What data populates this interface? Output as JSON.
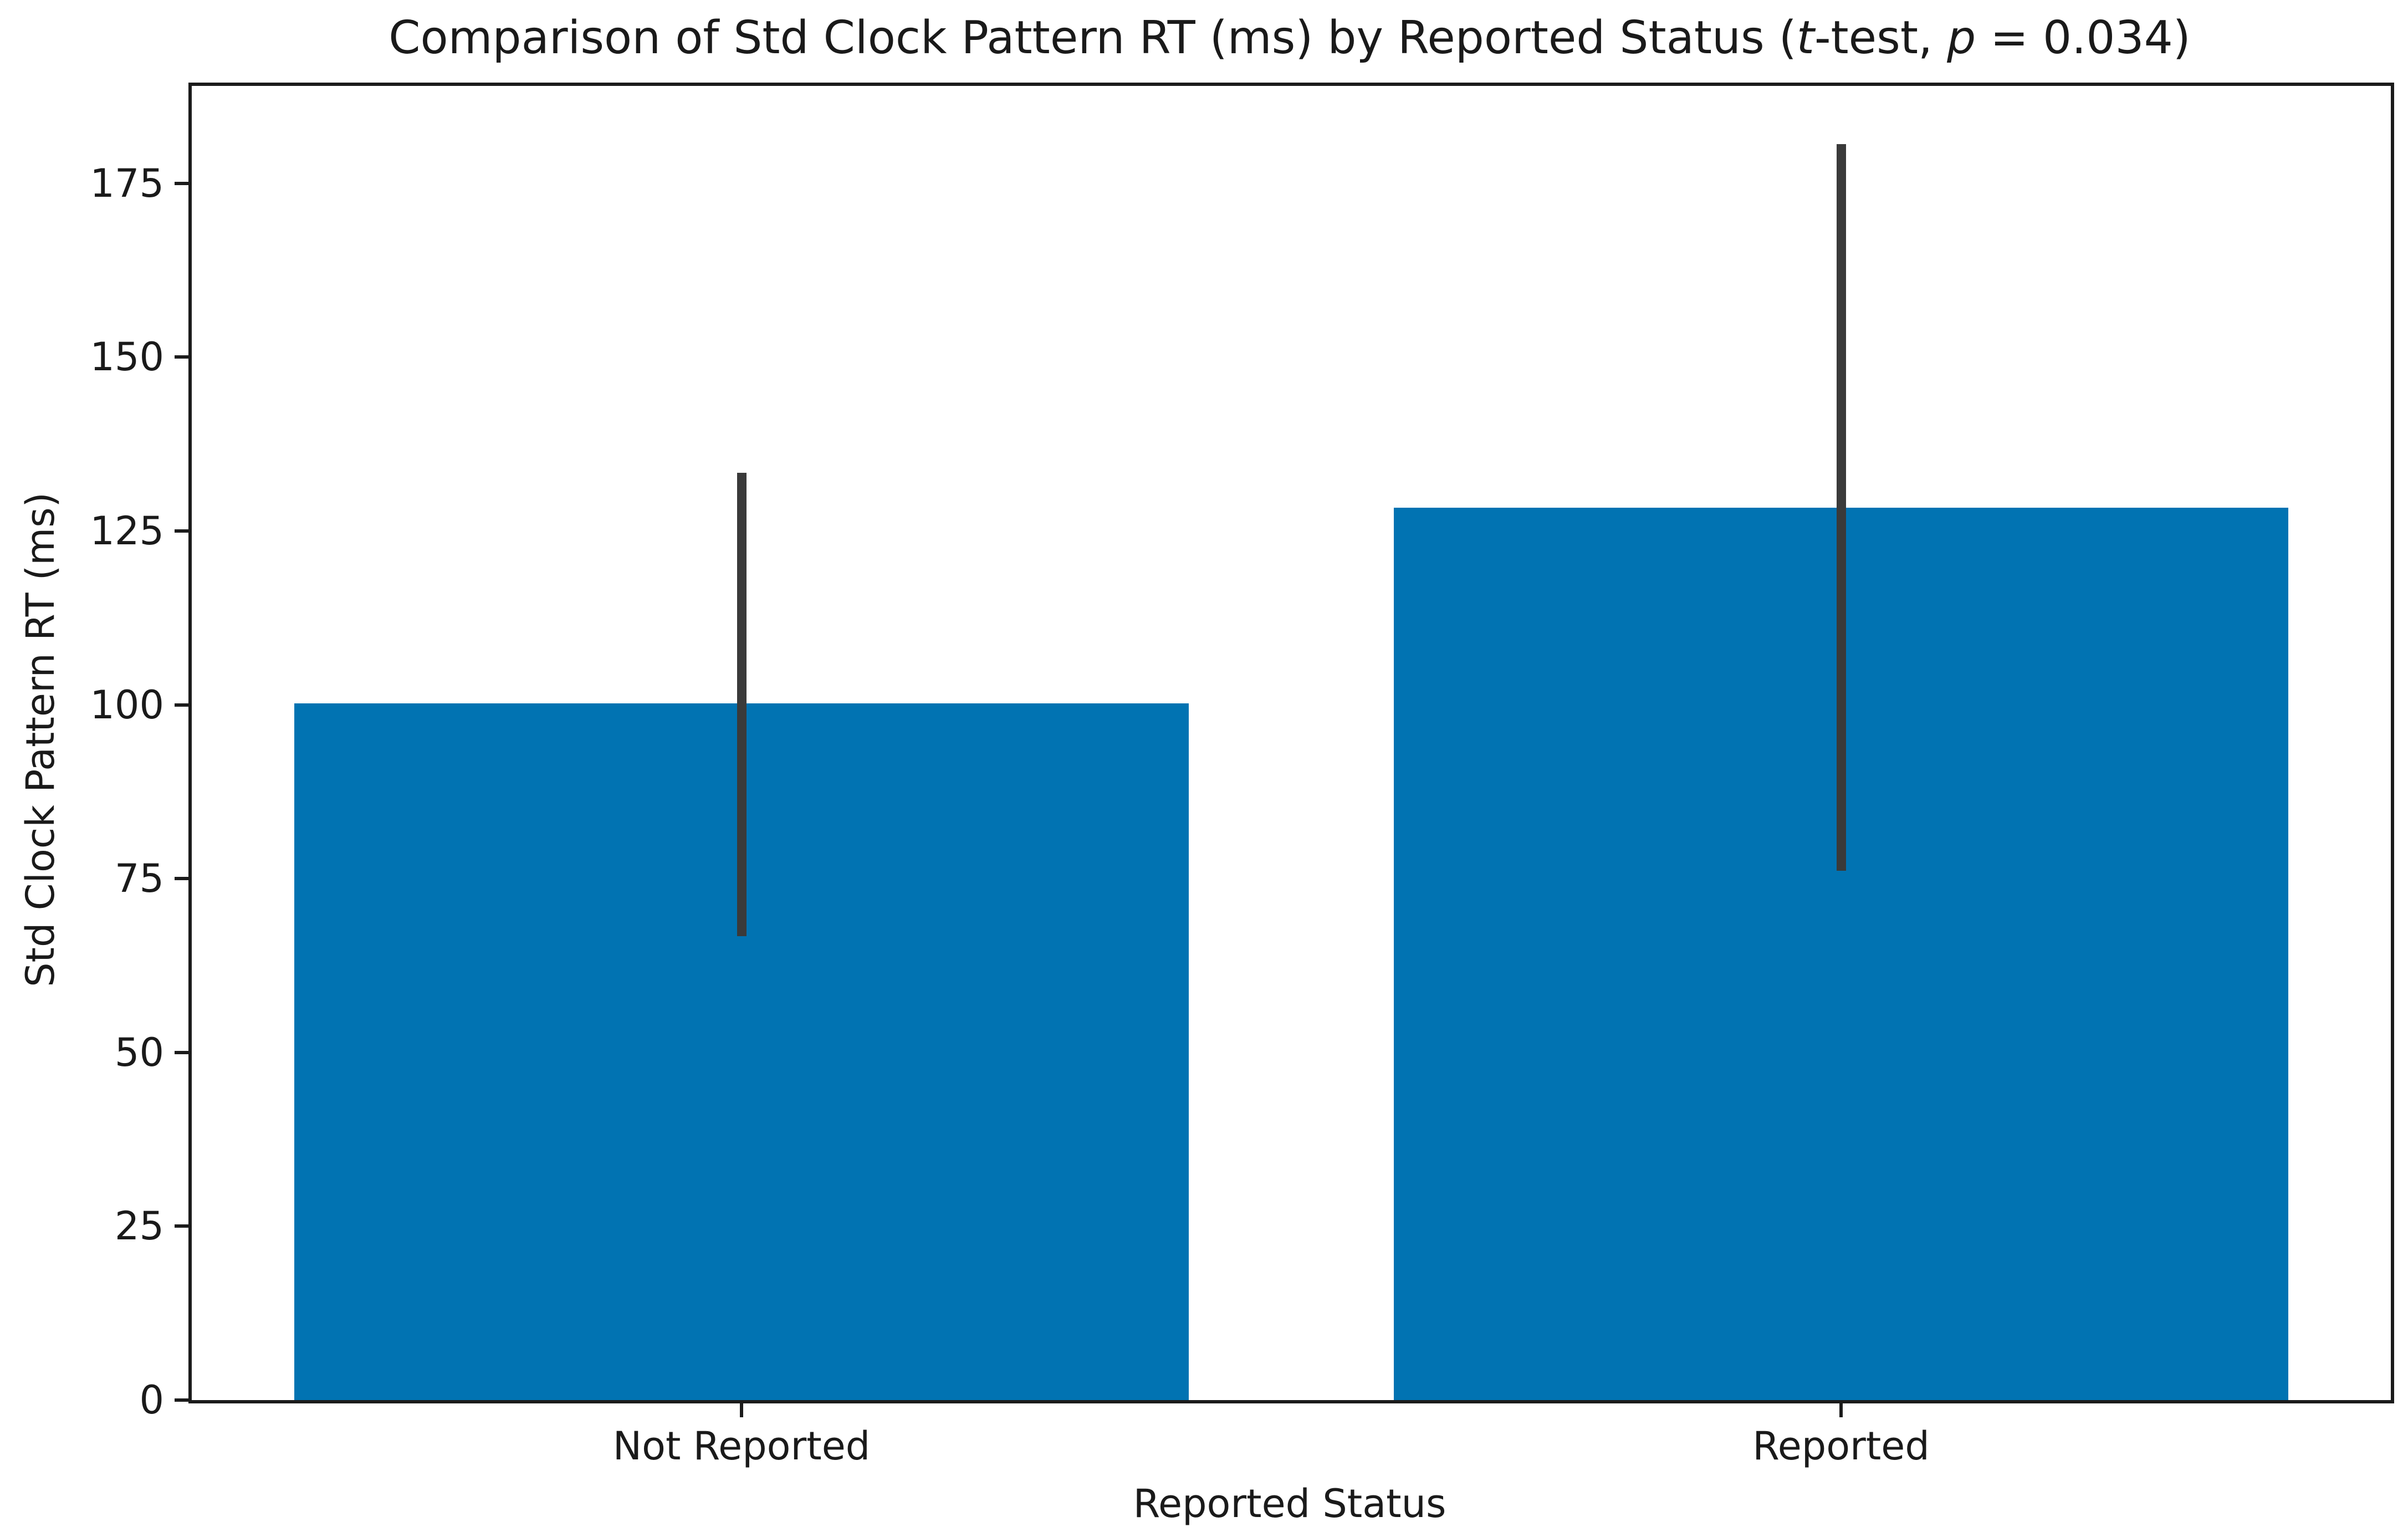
{
  "title": {
    "text": "Comparison of Std Clock Pattern RT (ms) by Reported Status (t-test, p = 0.034)",
    "prefix": "Comparison of Std Clock Pattern RT (ms) by Reported Status (",
    "t_italic": "t",
    "mid": "-test, ",
    "p_italic": "p",
    "suffix": " = 0.034)"
  },
  "chart_data": {
    "type": "bar",
    "categories": [
      "Not Reported",
      "Reported"
    ],
    "values": [
      100.2,
      128.3
    ],
    "error_bars": [
      {
        "low": 66.7,
        "high": 133.4
      },
      {
        "low": 76.1,
        "high": 180.6
      }
    ],
    "title": "Comparison of Std Clock Pattern RT (ms) by Reported Status (t-test, p = 0.034)",
    "xlabel": "Reported Status",
    "ylabel": "Std Clock Pattern RT (ms)",
    "ylim": [
      0,
      189
    ],
    "yticks": [
      0,
      25,
      50,
      75,
      100,
      125,
      150,
      175
    ],
    "grid": false,
    "legend": null,
    "stat_test": "t-test",
    "p_value": 0.034,
    "bar_color": "#0173b2",
    "error_bar_color": "#3a3a3a"
  }
}
